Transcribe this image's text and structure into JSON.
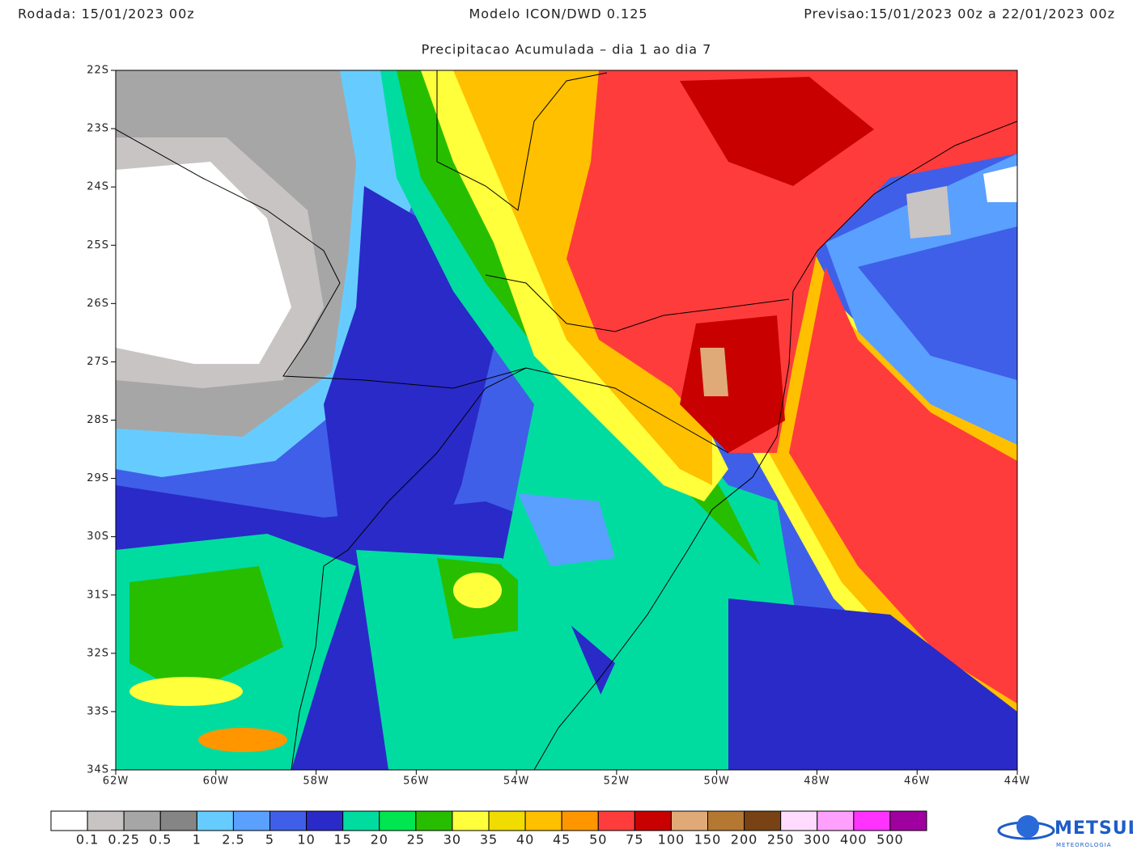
{
  "header": {
    "run": "Rodada: 15/01/2023 00z",
    "model": "Modelo ICON/DWD 0.125",
    "forecast": "Previsao:15/01/2023 00z a 22/01/2023 00z",
    "subtitle": "Precipitacao Acumulada – dia 1 ao dia 7"
  },
  "map": {
    "lat_labels": [
      "22S",
      "23S",
      "24S",
      "25S",
      "26S",
      "27S",
      "28S",
      "29S",
      "30S",
      "31S",
      "32S",
      "33S",
      "34S"
    ],
    "lon_labels": [
      "62W",
      "60W",
      "58W",
      "56W",
      "54W",
      "52W",
      "50W",
      "48W",
      "46W",
      "44W"
    ]
  },
  "legend": {
    "colors": [
      "#ffffff",
      "#c8c4c4",
      "#a6a6a6",
      "#858585",
      "#66ccff",
      "#5aa0ff",
      "#3f5fe8",
      "#2a2ac8",
      "#00dca0",
      "#00e650",
      "#28be00",
      "#ffff3c",
      "#f0dc00",
      "#ffc000",
      "#ff9600",
      "#ff3c3c",
      "#c80000",
      "#e0aa78",
      "#b47832",
      "#784214",
      "#ffdcff",
      "#ffa0ff",
      "#ff32ff",
      "#a000a0"
    ],
    "labels": [
      "0.1",
      "0.25",
      "0.5",
      "1",
      "2.5",
      "5",
      "10",
      "15",
      "20",
      "25",
      "30",
      "35",
      "40",
      "45",
      "50",
      "75",
      "100",
      "150",
      "200",
      "250",
      "300",
      "400",
      "500"
    ]
  },
  "logo": {
    "name": "METSUL",
    "tagline": "METEOROLOGIA"
  }
}
